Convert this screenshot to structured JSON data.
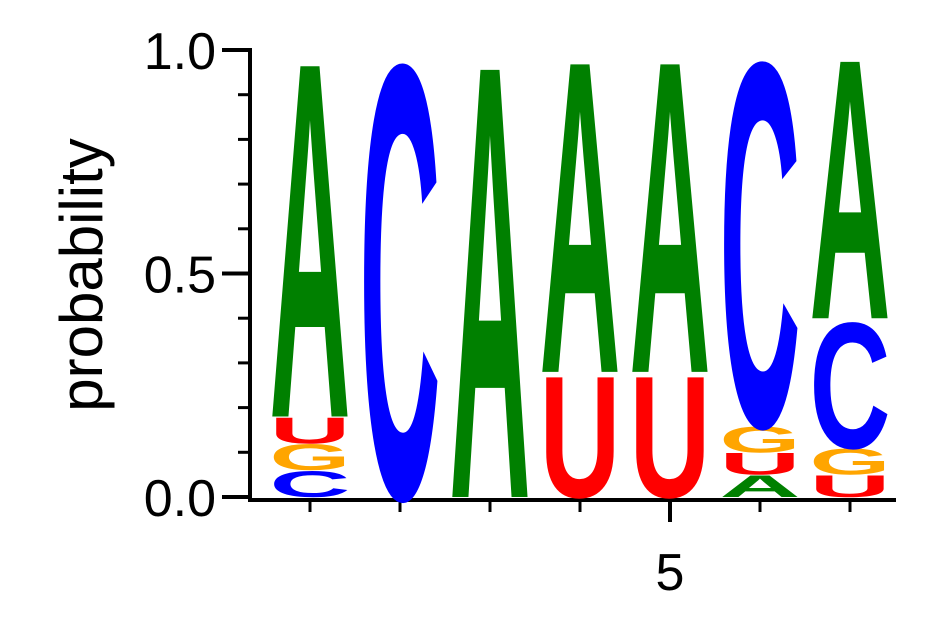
{
  "chart_data": {
    "type": "logo",
    "y_label": "probability",
    "x": [
      1,
      2,
      3,
      4,
      5,
      6,
      7
    ],
    "xlim": [
      0.5,
      7.5
    ],
    "xticks": [
      5
    ],
    "xminorticks": [
      1,
      2,
      3,
      4,
      6,
      7
    ],
    "ylim": [
      0,
      1
    ],
    "yticks": [
      {
        "value": 0,
        "label": "0.0"
      },
      {
        "value": 0.5,
        "label": "0.5"
      },
      {
        "value": 1,
        "label": "1.0"
      }
    ],
    "yminorticks": [
      0.1,
      0.2,
      0.3,
      0.4,
      0.6,
      0.7,
      0.8,
      0.9
    ],
    "series": [
      {
        "name": "A",
        "color": "#008000",
        "values": [
          0.82,
          0,
          1.0,
          0.72,
          0.72,
          0.05,
          0.6
        ]
      },
      {
        "name": "C",
        "color": "#0000ff",
        "values": [
          0.06,
          1.0,
          0,
          0,
          0,
          0.84,
          0.29
        ]
      },
      {
        "name": "G",
        "color": "#ffa500",
        "values": [
          0.06,
          0,
          0,
          0,
          0,
          0.06,
          0.06
        ]
      },
      {
        "name": "U",
        "color": "#ff0000",
        "values": [
          0.06,
          0,
          0,
          0.28,
          0.28,
          0.05,
          0.05
        ]
      }
    ]
  }
}
